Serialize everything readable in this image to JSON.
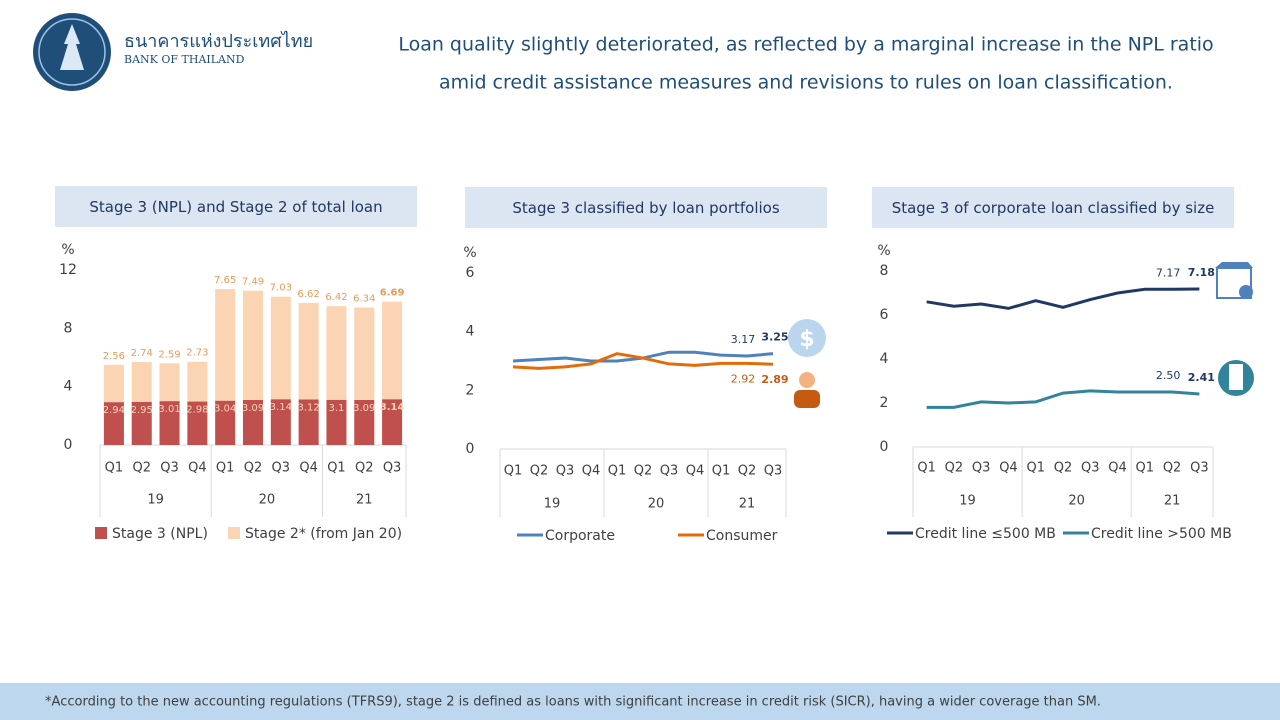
{
  "header": {
    "logo_thai": "ธนาคารแห่งประเทศไทย",
    "logo_english": "BANK OF THAILAND",
    "title": [
      "Loan quality slightly deteriorated, as reflected by a marginal increase in the NPL ratio",
      "amid credit assistance measures and revisions to rules on loan classification."
    ]
  },
  "chart_data": [
    {
      "type": "bar",
      "stacked": true,
      "data_labels": true,
      "title": "Stage 3 (NPL) and Stage 2 of total loan",
      "y_label": "%",
      "categories": [
        "Q1",
        "Q2",
        "Q3",
        "Q4",
        "Q1",
        "Q2",
        "Q3",
        "Q4",
        "Q1",
        "Q2",
        "Q3"
      ],
      "groups": [
        {
          "label": "19",
          "count": 4
        },
        {
          "label": "20",
          "count": 4
        },
        {
          "label": "21",
          "count": 3
        }
      ],
      "series": [
        {
          "name": "Stage 3 (NPL)",
          "color": "#c0504d",
          "label_color": "#fbd4b4",
          "values": [
            2.94,
            2.95,
            3.01,
            2.98,
            3.04,
            3.09,
            3.14,
            3.12,
            3.1,
            3.09,
            3.14
          ]
        },
        {
          "name": "Stage 2* (from Jan 20)",
          "color": "#fbd4b4",
          "label_color": "#e59b5a",
          "values": [
            2.56,
            2.74,
            2.59,
            2.73,
            7.65,
            7.49,
            7.03,
            6.62,
            6.42,
            6.34,
            6.69
          ]
        }
      ],
      "ylim": [
        0,
        12
      ],
      "yticks": [
        0,
        4,
        8,
        12
      ]
    },
    {
      "type": "line",
      "title": "Stage 3 classified by loan portfolios",
      "y_label": "%",
      "categories": [
        "Q1",
        "Q2",
        "Q3",
        "Q4",
        "Q1",
        "Q2",
        "Q3",
        "Q4",
        "Q1",
        "Q2",
        "Q3"
      ],
      "groups": [
        {
          "label": "19",
          "count": 4
        },
        {
          "label": "20",
          "count": 4
        },
        {
          "label": "21",
          "count": 3
        }
      ],
      "series": [
        {
          "name": "Corporate",
          "color": "#4f81bd",
          "label_color": "#1f3864",
          "label_position": "above",
          "values": [
            3.0,
            3.05,
            3.1,
            3.0,
            3.0,
            3.1,
            3.3,
            3.3,
            3.2,
            3.17,
            3.25
          ],
          "value_labels": [
            null,
            null,
            null,
            null,
            null,
            null,
            null,
            null,
            null,
            "3.17",
            "3.25"
          ]
        },
        {
          "name": "Consumer",
          "color": "#e36c09",
          "label_color": "#c55a11",
          "label_position": "below",
          "values": [
            2.8,
            2.75,
            2.8,
            2.9,
            3.25,
            3.1,
            2.9,
            2.85,
            2.92,
            2.92,
            2.89
          ],
          "value_labels": [
            null,
            null,
            null,
            null,
            null,
            null,
            null,
            null,
            null,
            "2.92",
            "2.89"
          ]
        }
      ],
      "ylim": [
        0,
        6
      ],
      "yticks": [
        0,
        2,
        4,
        6
      ]
    },
    {
      "type": "line",
      "title": "Stage 3 of corporate loan classified by size",
      "y_label": "%",
      "categories": [
        "Q1",
        "Q2",
        "Q3",
        "Q4",
        "Q1",
        "Q2",
        "Q3",
        "Q4",
        "Q1",
        "Q2",
        "Q3"
      ],
      "groups": [
        {
          "label": "19",
          "count": 4
        },
        {
          "label": "20",
          "count": 4
        },
        {
          "label": "21",
          "count": 3
        }
      ],
      "series": [
        {
          "name": "Credit line ≤500 MB",
          "color": "#1f3864",
          "label_color": "#1f3864",
          "label_position": "above",
          "values": [
            6.6,
            6.4,
            6.5,
            6.3,
            6.65,
            6.35,
            6.7,
            7.0,
            7.17,
            7.17,
            7.18
          ],
          "value_labels": [
            null,
            null,
            null,
            null,
            null,
            null,
            null,
            null,
            null,
            "7.17",
            "7.18"
          ]
        },
        {
          "name": "Credit line >500 MB",
          "color": "#31849b",
          "label_color": "#1f3864",
          "label_position": "above",
          "values": [
            1.8,
            1.8,
            2.05,
            2.0,
            2.05,
            2.45,
            2.55,
            2.5,
            2.5,
            2.5,
            2.41
          ],
          "value_labels": [
            null,
            null,
            null,
            null,
            null,
            null,
            null,
            null,
            null,
            "2.50",
            "2.41"
          ]
        }
      ],
      "ylim": [
        0,
        8
      ],
      "yticks": [
        0,
        2,
        4,
        6,
        8
      ]
    }
  ],
  "footnote": "*According to the new accounting regulations (TFRS9), stage 2 is defined as loans with significant increase in credit risk (SICR), having a wider coverage than SM."
}
